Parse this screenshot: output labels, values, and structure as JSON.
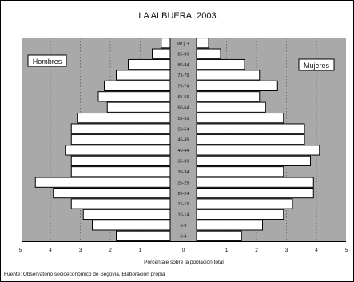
{
  "chart_data": {
    "type": "bar",
    "subtype": "population-pyramid",
    "title": "LA ALBUERA, 2003",
    "xlabel": "Porcentaje sobre la población total",
    "source": "Fuente: Observatorio socioeconómico de Segovia. Elaboración propia",
    "left_series_label": "Hombres",
    "right_series_label": "Mujeres",
    "xlim": [
      -5,
      5
    ],
    "x_tick_labels": [
      "5",
      "4",
      "3",
      "2",
      "1",
      "0",
      "1",
      "2",
      "3",
      "4",
      "5"
    ],
    "grid": "dotted vertical lines at each integer percent",
    "categories": [
      "0-4",
      "5-9",
      "10-14",
      "15-19",
      "20-24",
      "25-29",
      "30-34",
      "35-39",
      "40-44",
      "45-49",
      "50-54",
      "55-59",
      "60-64",
      "65-69",
      "70-74",
      "75-79",
      "80-84",
      "85-89",
      "90 y +"
    ],
    "series": [
      {
        "name": "Hombres",
        "values": [
          1.8,
          2.6,
          2.9,
          3.3,
          3.9,
          4.5,
          3.3,
          3.3,
          3.5,
          3.3,
          3.3,
          3.1,
          2.1,
          2.4,
          2.2,
          1.8,
          1.4,
          0.6,
          0.3
        ]
      },
      {
        "name": "Mujeres",
        "values": [
          1.5,
          2.2,
          2.9,
          3.2,
          3.9,
          3.9,
          2.9,
          3.8,
          4.1,
          3.6,
          3.6,
          2.9,
          2.3,
          2.1,
          2.7,
          2.1,
          1.6,
          0.8,
          0.4
        ]
      }
    ],
    "colors": {
      "background_panel": "#a9a9a9",
      "bar_fill": "#ffffff",
      "bar_stroke": "#000000",
      "label_box": "#ffffff"
    }
  }
}
